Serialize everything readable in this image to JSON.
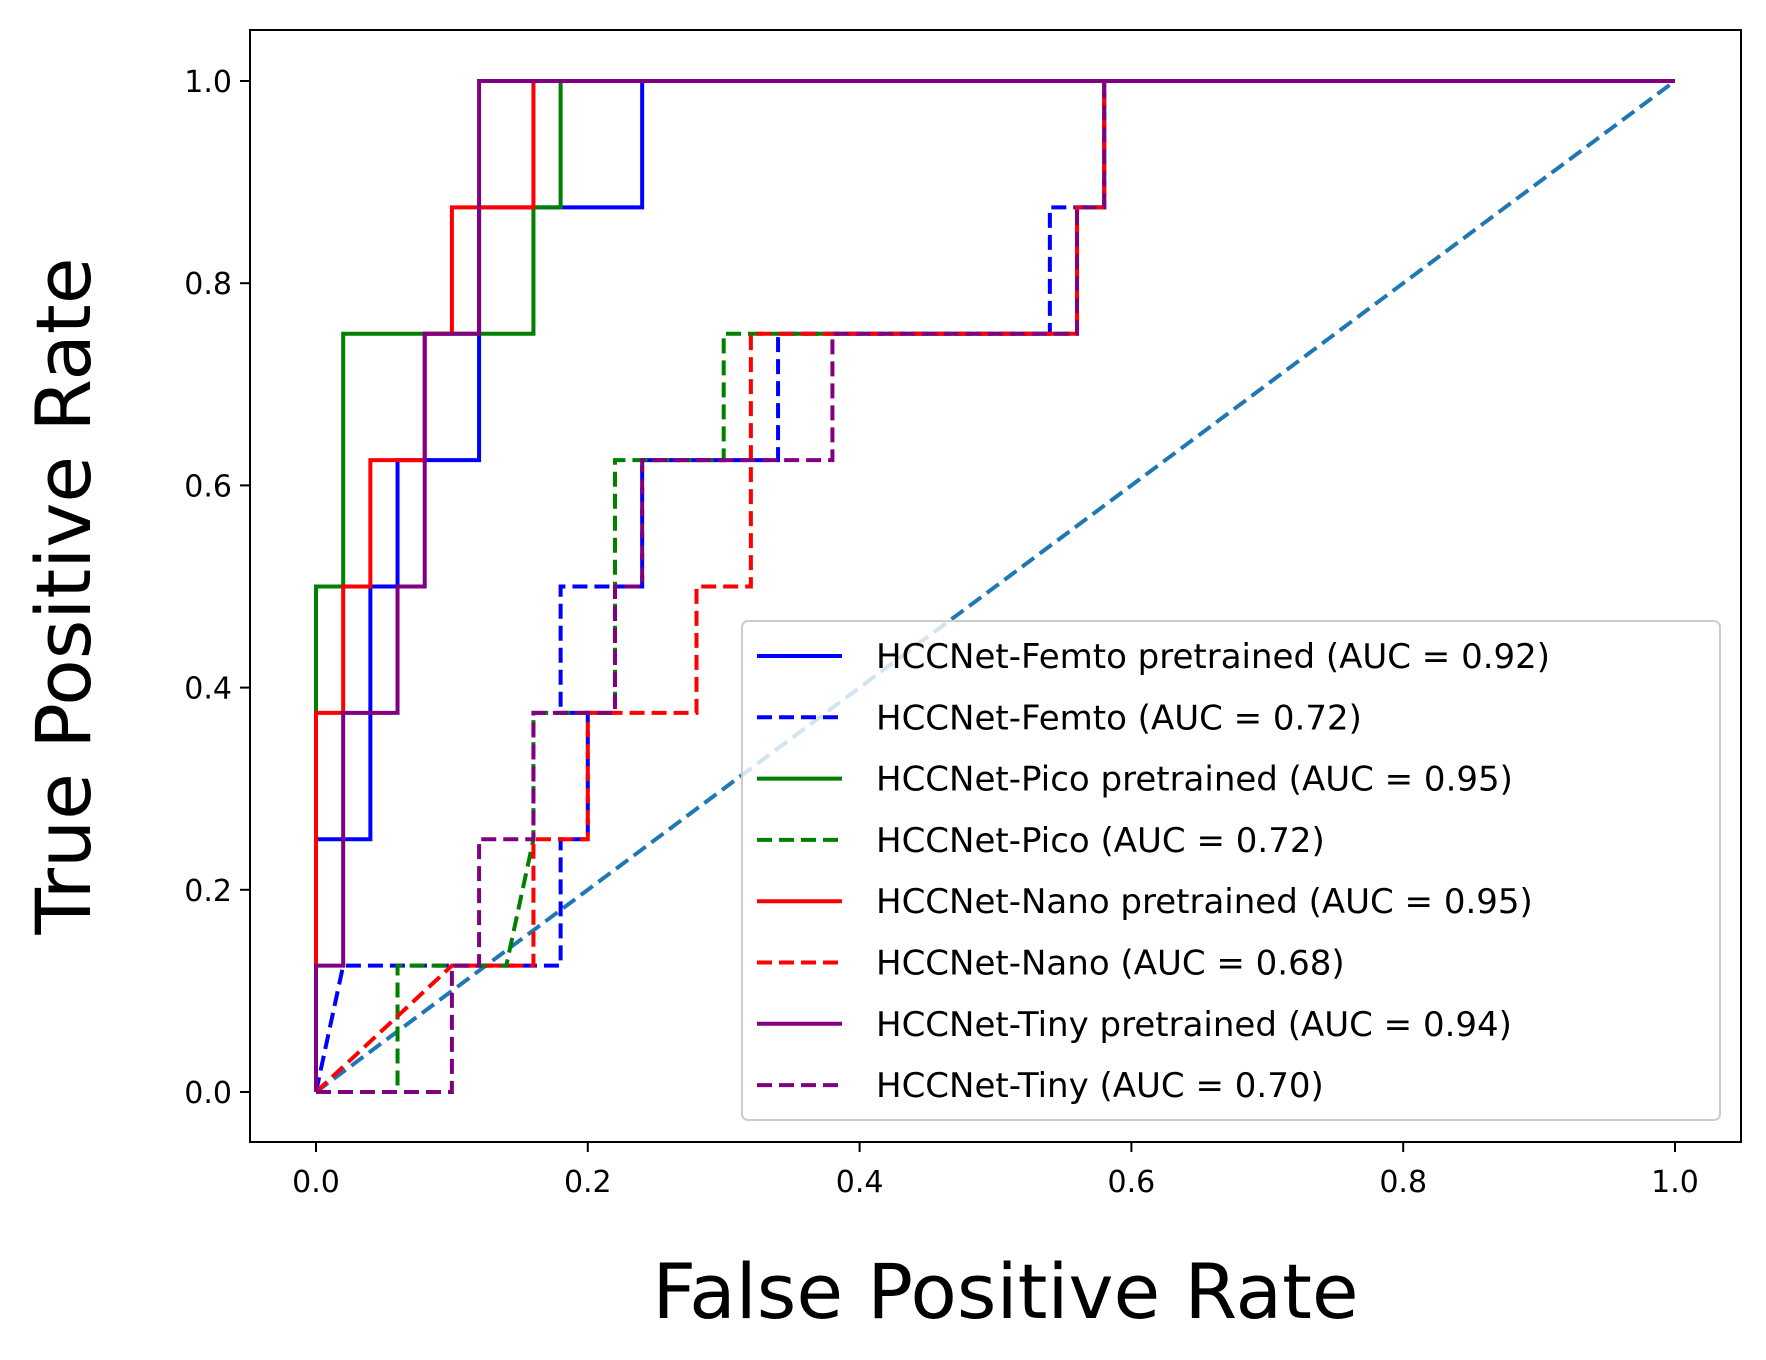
{
  "chart_data": {
    "type": "line",
    "title": "",
    "xlabel": "False Positive Rate",
    "ylabel": "True Positive Rate",
    "xlim": [
      -0.05,
      1.05
    ],
    "ylim": [
      -0.05,
      1.05
    ],
    "x_ticks": [
      "0.0",
      "0.2",
      "0.4",
      "0.6",
      "0.8",
      "1.0"
    ],
    "y_ticks": [
      "0.0",
      "0.2",
      "0.4",
      "0.6",
      "0.8",
      "1.0"
    ],
    "grid": false,
    "legend_position": "lower-right",
    "series": [
      {
        "name": "HCCNet-Femto pretrained (AUC = 0.92)",
        "color": "#0000ff",
        "dash": "solid",
        "x": [
          0,
          0,
          0.04,
          0.04,
          0.06,
          0.06,
          0.08,
          0.08,
          0.12,
          0.12,
          0.24,
          0.24,
          1
        ],
        "y": [
          0,
          0.25,
          0.25,
          0.5,
          0.5,
          0.625,
          0.625,
          0.625,
          0.625,
          0.875,
          0.875,
          1,
          1
        ]
      },
      {
        "name": "HCCNet-Femto  (AUC = 0.72)",
        "color": "#0000ff",
        "dash": "dashed",
        "x": [
          0,
          0.02,
          0.18,
          0.18,
          0.2,
          0.2,
          0.18,
          0.18,
          0.24,
          0.24,
          0.26,
          0.26,
          0.34,
          0.34,
          0.54,
          0.54,
          0.58,
          0.58,
          1
        ],
        "y": [
          0,
          0.125,
          0.125,
          0.25,
          0.25,
          0.375,
          0.375,
          0.5,
          0.5,
          0.625,
          0.625,
          0.625,
          0.625,
          0.75,
          0.75,
          0.875,
          0.875,
          1,
          1
        ]
      },
      {
        "name": "HCCNet-Pico pretrained (AUC = 0.95)",
        "color": "#008000",
        "dash": "solid",
        "x": [
          0,
          0,
          0.02,
          0.02,
          0.16,
          0.16,
          0.18,
          0.18,
          1
        ],
        "y": [
          0,
          0.5,
          0.5,
          0.75,
          0.75,
          0.875,
          0.875,
          1,
          1
        ]
      },
      {
        "name": "HCCNet-Pico  (AUC = 0.72)",
        "color": "#008000",
        "dash": "dashed",
        "x": [
          0,
          0.06,
          0.06,
          0.14,
          0.16,
          0.16,
          0.22,
          0.22,
          0.3,
          0.3,
          0.56,
          0.56,
          0.58,
          0.58,
          1
        ],
        "y": [
          0,
          0,
          0.125,
          0.125,
          0.25,
          0.375,
          0.375,
          0.625,
          0.625,
          0.75,
          0.75,
          0.875,
          0.875,
          1,
          1
        ]
      },
      {
        "name": "HCCNet-Nano pretrained (AUC = 0.95)",
        "color": "#ff0000",
        "dash": "solid",
        "x": [
          0,
          0,
          0.02,
          0.02,
          0.04,
          0.04,
          0.08,
          0.08,
          0.1,
          0.1,
          0.16,
          0.16,
          1
        ],
        "y": [
          0,
          0.375,
          0.375,
          0.5,
          0.5,
          0.625,
          0.625,
          0.75,
          0.75,
          0.875,
          0.875,
          1,
          1
        ]
      },
      {
        "name": "HCCNet-Nano  (AUC = 0.68)",
        "color": "#ff0000",
        "dash": "dashed",
        "x": [
          0,
          0.1,
          0.1,
          0.16,
          0.16,
          0.2,
          0.2,
          0.28,
          0.28,
          0.32,
          0.32,
          0.32,
          0.32,
          0.56,
          0.56,
          0.58,
          0.58,
          1
        ],
        "y": [
          0,
          0.125,
          0.125,
          0.125,
          0.25,
          0.25,
          0.375,
          0.375,
          0.5,
          0.5,
          0.625,
          0.625,
          0.75,
          0.75,
          0.875,
          0.875,
          1,
          1
        ]
      },
      {
        "name": "HCCNet-Tiny pretrained (AUC = 0.94)",
        "color": "#800080",
        "dash": "solid",
        "x": [
          0,
          0,
          0.02,
          0.02,
          0.06,
          0.06,
          0.08,
          0.08,
          0.12,
          0.12,
          1
        ],
        "y": [
          0,
          0.125,
          0.125,
          0.375,
          0.375,
          0.5,
          0.5,
          0.75,
          0.75,
          1,
          1
        ]
      },
      {
        "name": "HCCNet-Tiny  (AUC = 0.70)",
        "color": "#800080",
        "dash": "dashed",
        "x": [
          0,
          0.1,
          0.1,
          0.12,
          0.12,
          0.16,
          0.16,
          0.22,
          0.22,
          0.24,
          0.24,
          0.38,
          0.38,
          0.56,
          0.56,
          0.58,
          0.58,
          1
        ],
        "y": [
          0,
          0,
          0.125,
          0.125,
          0.25,
          0.25,
          0.375,
          0.375,
          0.5,
          0.5,
          0.625,
          0.625,
          0.75,
          0.75,
          0.875,
          0.875,
          1,
          1
        ]
      }
    ],
    "reference_line": {
      "color": "#1f77b4",
      "dash": "dashed",
      "x": [
        0,
        1
      ],
      "y": [
        0,
        1
      ]
    }
  }
}
